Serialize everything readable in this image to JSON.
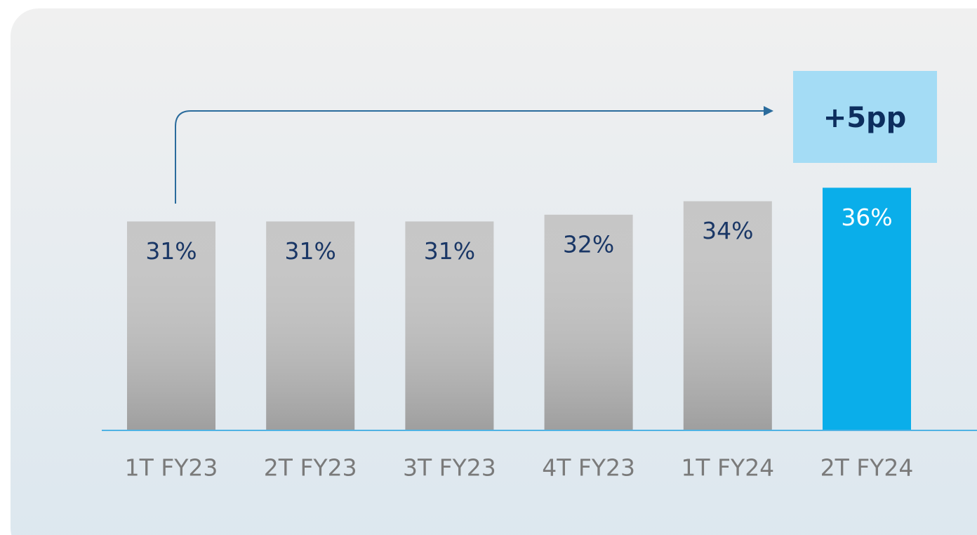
{
  "chart_data": {
    "type": "bar",
    "categories": [
      "1T FY23",
      "2T FY23",
      "3T FY23",
      "4T FY23",
      "1T FY24",
      "2T FY24"
    ],
    "values": [
      31,
      31,
      31,
      32,
      34,
      36
    ],
    "value_labels": [
      "31%",
      "31%",
      "31%",
      "32%",
      "34%",
      "36%"
    ],
    "colors": [
      "#c6c6c6",
      "#c6c6c6",
      "#c6c6c6",
      "#c6c6c6",
      "#c6c6c6",
      "#0aaeea"
    ],
    "annotation": "+5pp"
  }
}
